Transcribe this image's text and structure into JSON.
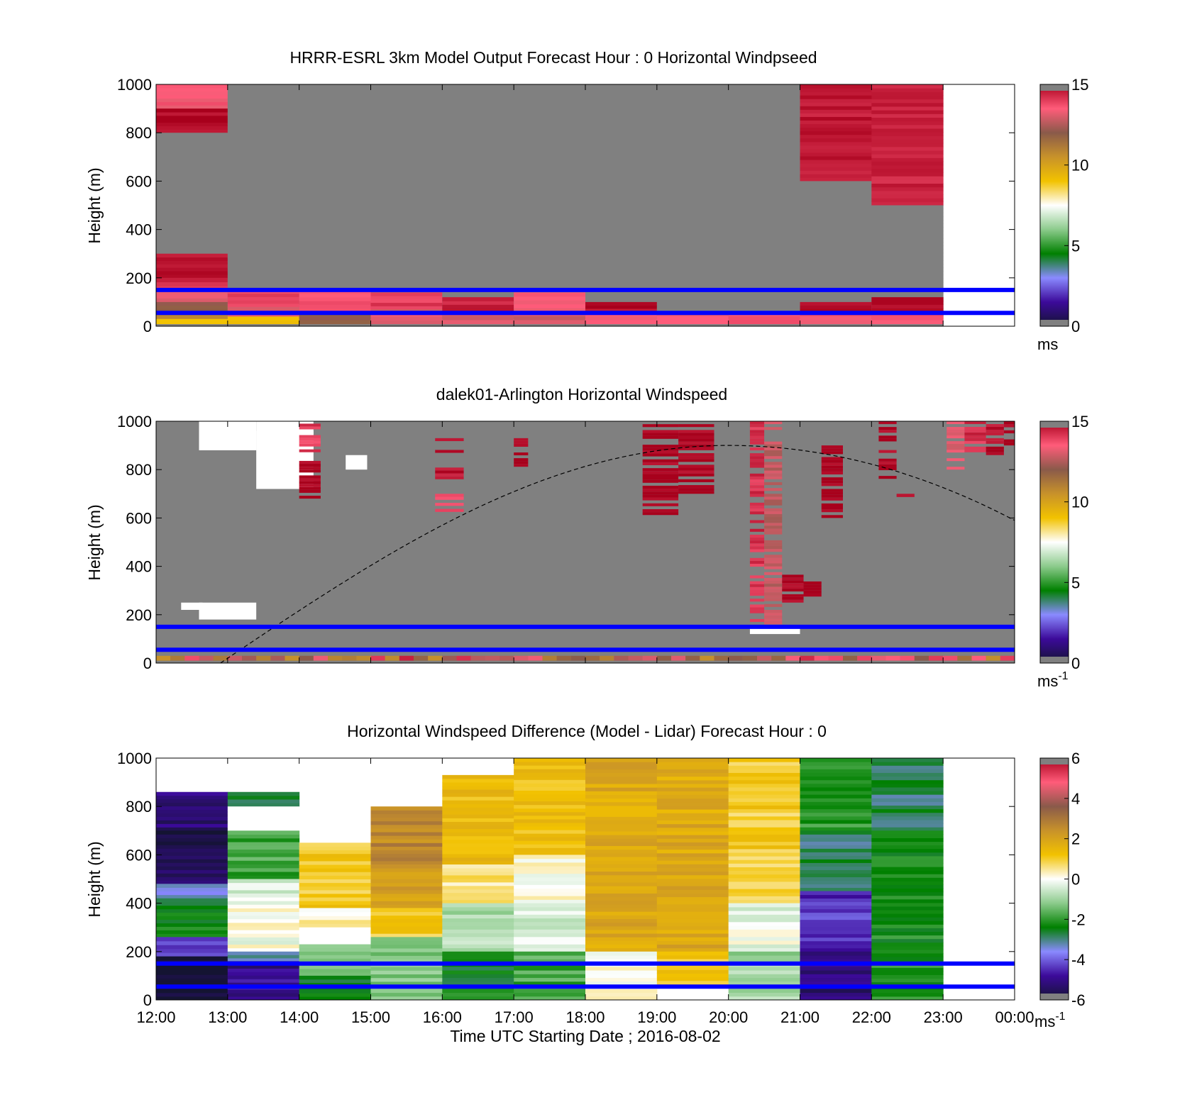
{
  "chart_data": [
    {
      "type": "heatmap",
      "title": "HRRR-ESRL 3km Model Output   Forecast Hour : 0 Horizontal Windpseed",
      "ylabel": "Height (m)",
      "ylim": [
        0,
        1000
      ],
      "yticks": [
        "0",
        "200",
        "400",
        "600",
        "800",
        "1000"
      ],
      "xlim": [
        "12:00",
        "00:00"
      ],
      "colorbar": {
        "ticks": [
          "0",
          "5",
          "10",
          "15"
        ],
        "range": [
          0,
          15
        ],
        "units": "ms"
      },
      "reference_lines_m": [
        150,
        55
      ],
      "reference_line_color": "#0000ff",
      "missing_color": "#808080",
      "columns": [
        {
          "hour": "12:00",
          "top": 1000,
          "segments": [
            [
              900,
              1000,
              13.5
            ],
            [
              800,
              900,
              14.8
            ],
            [
              0,
              800,
              null
            ],
            [
              200,
              300,
              14.8
            ],
            [
              150,
              200,
              14.2
            ],
            [
              100,
              150,
              13.0
            ],
            [
              60,
              100,
              12.0
            ],
            [
              30,
              60,
              11.0
            ],
            [
              10,
              30,
              9.0
            ]
          ]
        },
        {
          "hour": "13:00",
          "top": 1000,
          "segments": [
            [
              0,
              1000,
              null
            ],
            [
              80,
              150,
              13.8
            ],
            [
              40,
              80,
              13.0
            ],
            [
              10,
              40,
              9.0
            ]
          ]
        },
        {
          "hour": "14:00",
          "top": 1000,
          "segments": [
            [
              0,
              1000,
              null
            ],
            [
              60,
              150,
              13.8
            ],
            [
              10,
              60,
              12.0
            ]
          ]
        },
        {
          "hour": "15:00",
          "top": 1000,
          "segments": [
            [
              0,
              1000,
              null
            ],
            [
              70,
              140,
              14.0
            ],
            [
              10,
              70,
              13.0
            ]
          ]
        },
        {
          "hour": "16:00",
          "top": 1000,
          "segments": [
            [
              0,
              1000,
              null
            ],
            [
              60,
              120,
              14.5
            ],
            [
              10,
              60,
              13.0
            ]
          ]
        },
        {
          "hour": "17:00",
          "top": 1000,
          "segments": [
            [
              0,
              1000,
              null
            ],
            [
              60,
              140,
              13.5
            ],
            [
              10,
              60,
              13.0
            ]
          ]
        },
        {
          "hour": "18:00",
          "top": 1000,
          "segments": [
            [
              0,
              1000,
              null
            ],
            [
              60,
              100,
              14.8
            ],
            [
              10,
              60,
              13.5
            ]
          ]
        },
        {
          "hour": "19:00",
          "top": 1000,
          "segments": [
            [
              0,
              1000,
              null
            ],
            [
              10,
              60,
              13.5
            ]
          ]
        },
        {
          "hour": "20:00",
          "top": 1000,
          "segments": [
            [
              0,
              1000,
              null
            ],
            [
              10,
              60,
              13.5
            ]
          ]
        },
        {
          "hour": "21:00",
          "top": 1000,
          "segments": [
            [
              600,
              1000,
              14.6
            ],
            [
              0,
              600,
              null
            ],
            [
              60,
              100,
              14.8
            ],
            [
              10,
              60,
              13.5
            ]
          ]
        },
        {
          "hour": "22:00",
          "top": 1000,
          "segments": [
            [
              500,
              1000,
              14.4
            ],
            [
              0,
              500,
              null
            ],
            [
              60,
              120,
              14.8
            ],
            [
              10,
              60,
              13.5
            ]
          ]
        }
      ]
    },
    {
      "type": "heatmap",
      "title": "dalek01-Arlington  Horizontal Windspeed",
      "ylabel": "Height (m)",
      "ylim": [
        0,
        1000
      ],
      "yticks": [
        "0",
        "200",
        "400",
        "600",
        "800",
        "1000"
      ],
      "xlim": [
        "12:00",
        "00:00"
      ],
      "colorbar": {
        "ticks": [
          "0",
          "5",
          "10",
          "15"
        ],
        "range": [
          0,
          15
        ],
        "units": "ms",
        "units_exp": "-1"
      },
      "reference_lines_m": [
        150,
        55
      ],
      "reference_line_color": "#0000ff",
      "missing_color": "#808080",
      "curve_dashed": {
        "color": "#000000",
        "t_start_h": 0.9,
        "t_peak_h": 8.0,
        "peak_m": 900,
        "t_end_h": 12.0,
        "end_m": 590
      },
      "features": [
        {
          "t0": 2.0,
          "t1": 2.3,
          "ranges": [
            [
              860,
              990,
              13.8
            ],
            [
              680,
              860,
              14.8
            ]
          ]
        },
        {
          "t0": 3.9,
          "t1": 4.3,
          "ranges": [
            [
              760,
              930,
              14.5
            ],
            [
              600,
              700,
              13.8
            ]
          ]
        },
        {
          "t0": 5.0,
          "t1": 5.2,
          "ranges": [
            [
              800,
              930,
              14.8
            ]
          ]
        },
        {
          "t0": 6.8,
          "t1": 7.3,
          "ranges": [
            [
              600,
              1000,
              14.8
            ]
          ]
        },
        {
          "t0": 7.3,
          "t1": 7.8,
          "ranges": [
            [
              700,
              1000,
              14.8
            ]
          ]
        },
        {
          "t0": 8.3,
          "t1": 8.5,
          "ranges": [
            [
              170,
              1000,
              14.0
            ]
          ]
        },
        {
          "t0": 8.5,
          "t1": 8.75,
          "ranges": [
            [
              160,
              1000,
              12.5
            ]
          ]
        },
        {
          "t0": 8.75,
          "t1": 9.05,
          "ranges": [
            [
              250,
              400,
              14.8
            ]
          ]
        },
        {
          "t0": 9.05,
          "t1": 9.3,
          "ranges": [
            [
              250,
              350,
              14.8
            ]
          ]
        },
        {
          "t0": 9.3,
          "t1": 9.6,
          "ranges": [
            [
              600,
              900,
              14.8
            ]
          ]
        },
        {
          "t0": 10.1,
          "t1": 10.35,
          "ranges": [
            [
              750,
              1000,
              14.8
            ]
          ]
        },
        {
          "t0": 10.35,
          "t1": 10.6,
          "ranges": [
            [
              660,
              700,
              14.8
            ]
          ]
        },
        {
          "t0": 11.05,
          "t1": 11.3,
          "ranges": [
            [
              800,
              1000,
              13.0
            ]
          ]
        },
        {
          "t0": 11.3,
          "t1": 11.6,
          "ranges": [
            [
              860,
              1000,
              14.0
            ]
          ]
        },
        {
          "t0": 11.6,
          "t1": 11.85,
          "ranges": [
            [
              860,
              1000,
              14.6
            ]
          ]
        },
        {
          "t0": 11.85,
          "t1": 12.0,
          "ranges": [
            [
              900,
              1000,
              14.8
            ]
          ]
        }
      ],
      "gaps": [
        {
          "t0": 0.35,
          "t1": 0.65,
          "ranges": [
            [
              220,
              250
            ]
          ]
        },
        {
          "t0": 0.6,
          "t1": 1.4,
          "ranges": [
            [
              180,
              250
            ],
            [
              880,
              1000
            ]
          ]
        },
        {
          "t0": 1.4,
          "t1": 2.2,
          "ranges": [
            [
              720,
              960
            ],
            [
              880,
              1000
            ]
          ]
        },
        {
          "t0": 2.65,
          "t1": 2.95,
          "ranges": [
            [
              800,
              860
            ]
          ]
        },
        {
          "t0": 8.3,
          "t1": 9.0,
          "ranges": [
            [
              120,
              150
            ]
          ]
        }
      ]
    },
    {
      "type": "heatmap",
      "title": "Horizontal Windspeed Difference (Model - Lidar) Forecast Hour : 0",
      "ylabel": "Height (m)",
      "xlabel": "Time UTC  Starting Date ; 2016-08-02",
      "ylim": [
        0,
        1000
      ],
      "yticks": [
        "0",
        "200",
        "400",
        "600",
        "800",
        "1000"
      ],
      "xticks": [
        "12:00",
        "13:00",
        "14:00",
        "15:00",
        "16:00",
        "17:00",
        "18:00",
        "19:00",
        "20:00",
        "21:00",
        "22:00",
        "23:00",
        "00:00"
      ],
      "colorbar": {
        "ticks": [
          "-6",
          "-4",
          "-2",
          "0",
          "2",
          "4",
          "6"
        ],
        "range": [
          -6,
          6
        ],
        "units": "ms",
        "units_exp": "-1"
      },
      "reference_lines_m": [
        150,
        55
      ],
      "reference_line_color": "#0000ff",
      "columns": [
        {
          "hour": "12:00",
          "top": 860,
          "segments": [
            [
              700,
              860,
              -5.2
            ],
            [
              480,
              700,
              -5.6
            ],
            [
              420,
              480,
              -3.2
            ],
            [
              260,
              420,
              -2.4
            ],
            [
              180,
              260,
              -4.4
            ],
            [
              0,
              180,
              -5.8
            ]
          ]
        },
        {
          "hour": "13:00",
          "top": 860,
          "segments": [
            [
              800,
              860,
              -2.5
            ],
            [
              700,
              800,
              null
            ],
            [
              500,
              700,
              -1.8
            ],
            [
              440,
              500,
              -0.4
            ],
            [
              200,
              440,
              0.0
            ],
            [
              160,
              200,
              -3.0
            ],
            [
              0,
              160,
              -5.0
            ]
          ]
        },
        {
          "hour": "14:00",
          "top": 650,
          "segments": [
            [
              380,
              650,
              1.0
            ],
            [
              300,
              380,
              0.2
            ],
            [
              230,
              300,
              null
            ],
            [
              100,
              230,
              -1.3
            ],
            [
              0,
              100,
              -2.6
            ]
          ]
        },
        {
          "hour": "15:00",
          "top": 800,
          "segments": [
            [
              560,
              800,
              2.6
            ],
            [
              380,
              560,
              2.0
            ],
            [
              260,
              380,
              1.0
            ],
            [
              0,
              260,
              -1.4
            ]
          ]
        },
        {
          "hour": "16:00",
          "top": 930,
          "segments": [
            [
              560,
              930,
              1.4
            ],
            [
              400,
              560,
              0.6
            ],
            [
              200,
              400,
              -0.8
            ],
            [
              0,
              200,
              -2.4
            ]
          ]
        },
        {
          "hour": "17:00",
          "top": 1000,
          "segments": [
            [
              600,
              1000,
              1.2
            ],
            [
              400,
              600,
              0.0
            ],
            [
              200,
              400,
              -0.4
            ],
            [
              0,
              200,
              -1.8
            ]
          ]
        },
        {
          "hour": "18:00",
          "top": 1000,
          "segments": [
            [
              200,
              1000,
              1.8
            ],
            [
              0,
              200,
              0.0
            ]
          ]
        },
        {
          "hour": "19:00",
          "top": 1000,
          "segments": [
            [
              200,
              1000,
              1.8
            ],
            [
              50,
              200,
              1.0
            ]
          ]
        },
        {
          "hour": "20:00",
          "top": 1000,
          "segments": [
            [
              400,
              1000,
              1.0
            ],
            [
              200,
              400,
              -0.2
            ],
            [
              0,
              200,
              -1.0
            ]
          ]
        },
        {
          "hour": "21:00",
          "top": 1000,
          "segments": [
            [
              700,
              1000,
              -2.0
            ],
            [
              450,
              700,
              -2.8
            ],
            [
              200,
              450,
              -4.4
            ],
            [
              0,
              200,
              -5.2
            ]
          ]
        },
        {
          "hour": "22:00",
          "top": 1000,
          "segments": [
            [
              700,
              1000,
              -2.8
            ],
            [
              0,
              700,
              -2.2
            ]
          ]
        }
      ]
    }
  ]
}
